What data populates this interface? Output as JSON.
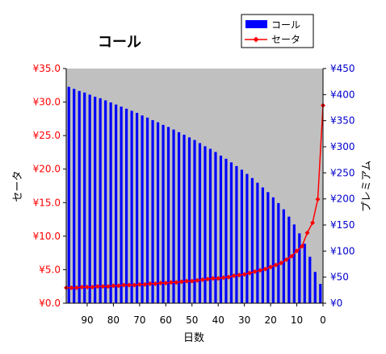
{
  "chart_data": {
    "type": "bar+line",
    "title": "コール",
    "xlabel": "日数",
    "ylabel_left": "セータ",
    "ylabel_right": "プレミアム",
    "x_range": [
      98,
      0
    ],
    "x_ticks": [
      90,
      80,
      70,
      60,
      50,
      40,
      30,
      20,
      10,
      0
    ],
    "x_tick_labels": [
      "90",
      "80",
      "70",
      "60",
      "50",
      "40",
      "30",
      "20",
      "10",
      "0"
    ],
    "y_left_range": [
      0,
      35
    ],
    "y_left_ticks": [
      0,
      5,
      10,
      15,
      20,
      25,
      30,
      35
    ],
    "y_left_tick_labels": [
      "¥0.0",
      "¥5.0",
      "¥10.0",
      "¥15.0",
      "¥20.0",
      "¥25.0",
      "¥30.0",
      "¥35.0"
    ],
    "y_right_range": [
      0,
      450
    ],
    "y_right_ticks": [
      0,
      50,
      100,
      150,
      200,
      250,
      300,
      350,
      400,
      450
    ],
    "y_right_tick_labels": [
      "¥0",
      "¥50",
      "¥100",
      "¥150",
      "¥200",
      "¥250",
      "¥300",
      "¥350",
      "¥400",
      "¥450"
    ],
    "legend_position": "top-right",
    "series": [
      {
        "name": "コール",
        "kind": "bar",
        "axis": "right",
        "color": "#0000ff",
        "x": [
          97,
          95,
          93,
          91,
          89,
          87,
          85,
          83,
          81,
          79,
          77,
          75,
          73,
          71,
          69,
          67,
          65,
          63,
          61,
          59,
          57,
          55,
          53,
          51,
          49,
          47,
          45,
          43,
          41,
          39,
          37,
          35,
          33,
          31,
          29,
          27,
          25,
          23,
          21,
          19,
          17,
          15,
          13,
          11,
          9,
          7,
          5,
          3,
          1
        ],
        "values": [
          415,
          411,
          407,
          404,
          400,
          396,
          393,
          389,
          385,
          381,
          377,
          373,
          369,
          365,
          360,
          356,
          351,
          347,
          342,
          338,
          333,
          328,
          323,
          318,
          313,
          307,
          301,
          296,
          290,
          283,
          277,
          270,
          263,
          256,
          248,
          240,
          231,
          222,
          213,
          203,
          192,
          180,
          166,
          151,
          134,
          114,
          89,
          60,
          37
        ]
      },
      {
        "name": "セータ",
        "kind": "line",
        "axis": "left",
        "color": "#ff0000",
        "x": [
          98,
          96,
          94,
          92,
          90,
          88,
          86,
          84,
          82,
          80,
          78,
          76,
          74,
          72,
          70,
          68,
          66,
          64,
          62,
          60,
          58,
          56,
          54,
          52,
          50,
          48,
          46,
          44,
          42,
          40,
          38,
          36,
          34,
          32,
          30,
          28,
          26,
          24,
          22,
          20,
          18,
          16,
          14,
          12,
          10,
          8,
          6,
          4,
          2,
          0
        ],
        "values": [
          2.3,
          2.3,
          2.3,
          2.4,
          2.4,
          2.4,
          2.5,
          2.5,
          2.5,
          2.6,
          2.6,
          2.7,
          2.7,
          2.7,
          2.8,
          2.8,
          2.9,
          2.9,
          3.0,
          3.0,
          3.1,
          3.1,
          3.2,
          3.3,
          3.3,
          3.4,
          3.5,
          3.6,
          3.7,
          3.7,
          3.8,
          3.9,
          4.1,
          4.2,
          4.3,
          4.5,
          4.7,
          4.9,
          5.1,
          5.4,
          5.7,
          6.0,
          6.5,
          7.0,
          7.8,
          8.5,
          10.5,
          12.0,
          15.5,
          29.5
        ]
      }
    ]
  }
}
